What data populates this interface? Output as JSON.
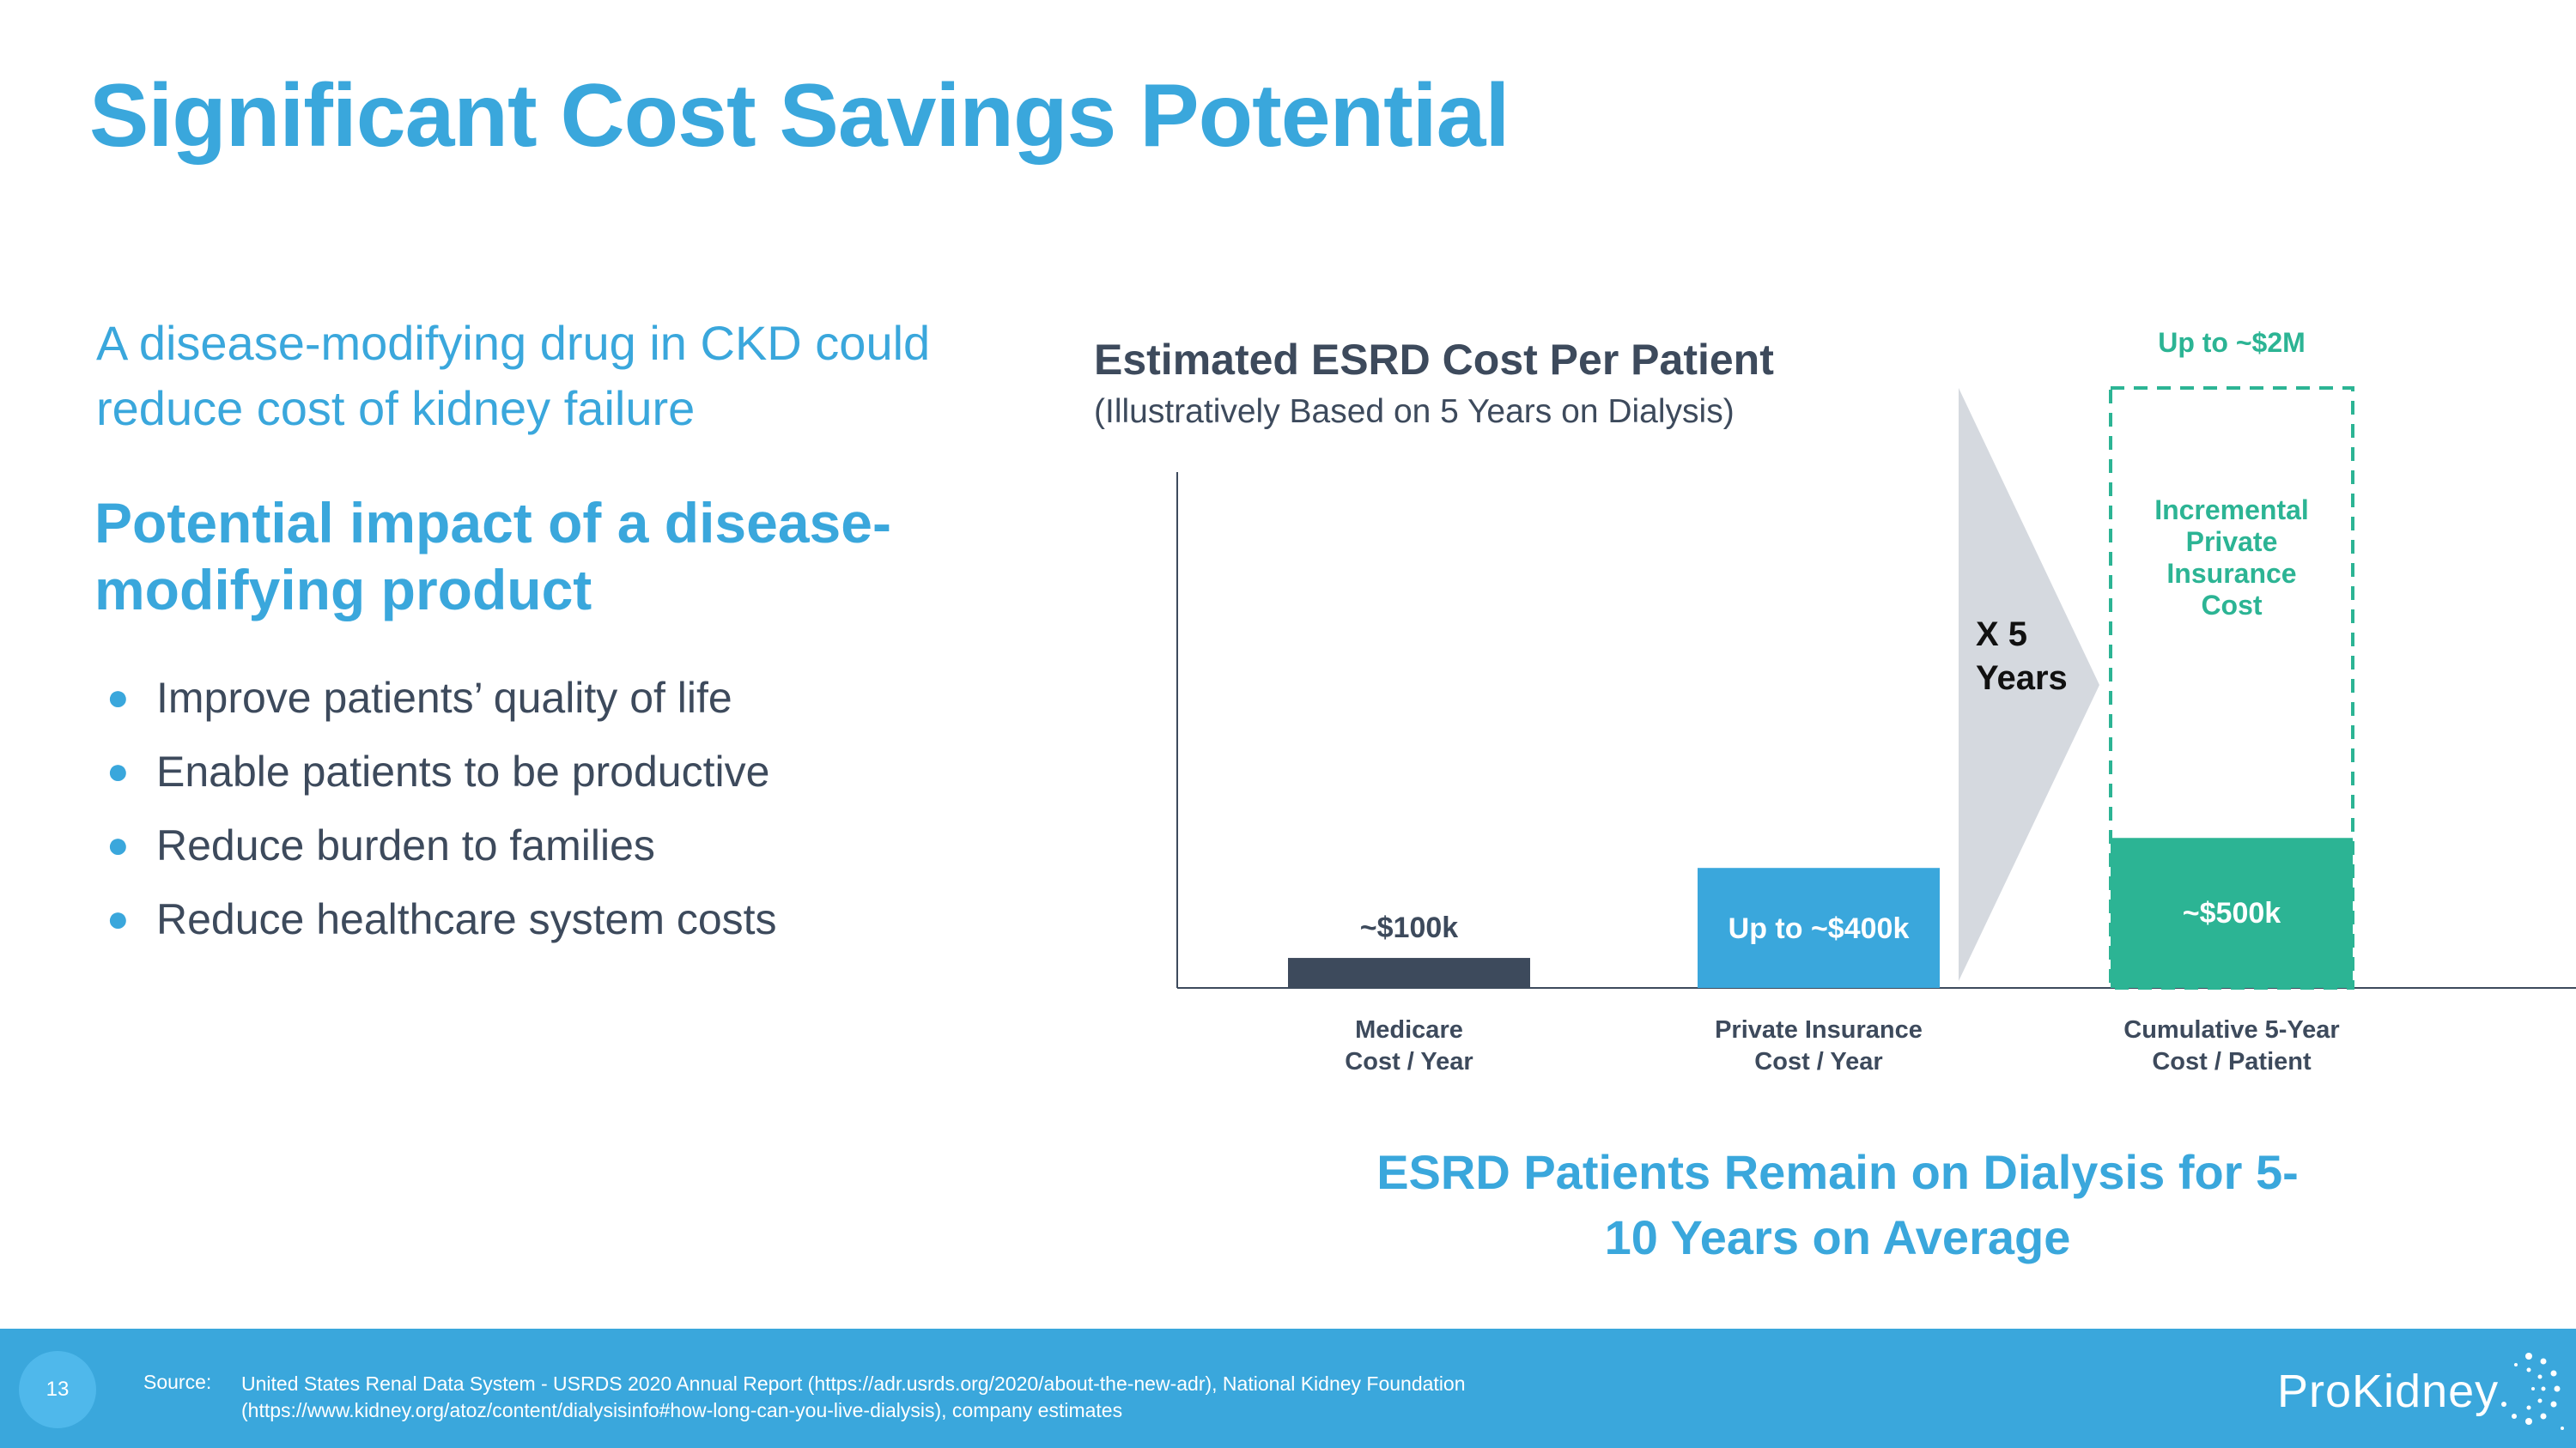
{
  "slide": {
    "title": "Significant Cost Savings Potential",
    "lead": "A disease-modifying drug in CKD could reduce cost of kidney failure",
    "impact_heading": "Potential impact of a disease-modifying product",
    "bullets": [
      "Improve patients’ quality of life",
      "Enable patients to be productive",
      "Reduce burden to families",
      "Reduce healthcare system costs"
    ],
    "callout": "ESRD Patients Remain on Dialysis for 5-10 Years on Average"
  },
  "footer": {
    "page_number": "13",
    "source_label": "Source:",
    "source_text": "United States Renal Data System - USRDS 2020 Annual Report (https://adr.usrds.org/2020/about-the-new-adr), National Kidney Foundation (https://www.kidney.org/atoz/content/dialysisinfo#how-long-can-you-live-dialysis), company estimates",
    "logo_text": "ProKidney"
  },
  "colors": {
    "accent": "#3aa7dc",
    "dark": "#3d4a5c",
    "medicare": "#3d4a5c",
    "private": "#3aa7dc",
    "cumulative": "#2cb494",
    "arrow": "#d5d9df"
  },
  "chart_data": {
    "type": "bar",
    "title": "Estimated ESRD Cost Per Patient",
    "subtitle": "(Illustratively Based on  5 Years on Dialysis)",
    "categories": [
      "Medicare Cost / Year",
      "Private Insurance Cost / Year",
      "Cumulative 5-Year Cost / Patient"
    ],
    "category_lines": [
      [
        "Medicare",
        "Cost / Year"
      ],
      [
        "Private Insurance",
        "Cost / Year"
      ],
      [
        "Cumulative 5-Year",
        "Cost / Patient"
      ]
    ],
    "values": [
      100000,
      400000,
      500000
    ],
    "data_labels": [
      "~$100k",
      "Up to ~$400k",
      "~$500k"
    ],
    "incremental": {
      "value_total": 2000000,
      "label": "Up to ~$2M",
      "caption_lines": [
        "Incremental",
        "Private",
        "Insurance",
        "Cost"
      ]
    },
    "multiplier_lines": [
      "X 5",
      "Years"
    ],
    "ylim": [
      0,
      2000000
    ],
    "grid": false
  }
}
